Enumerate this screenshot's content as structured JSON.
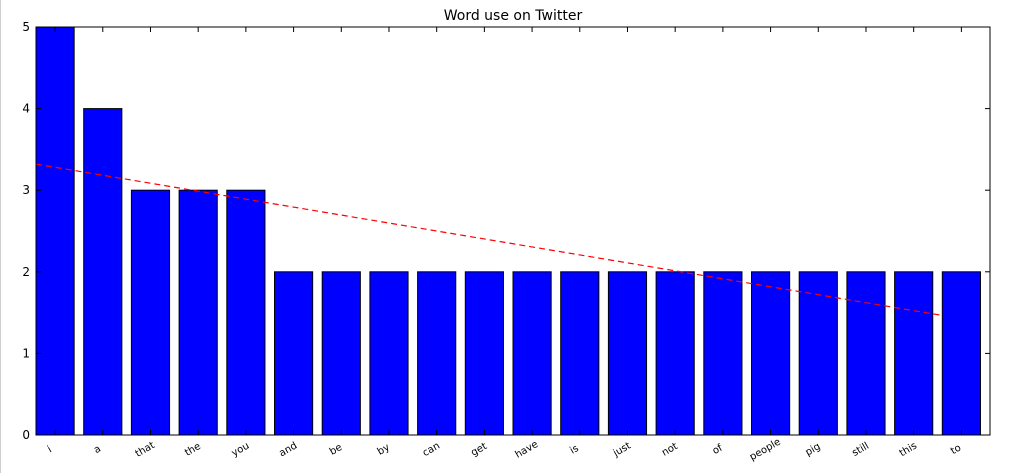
{
  "chart_data": {
    "type": "bar",
    "title": "Word use on Twitter",
    "xlabel": "",
    "ylabel": "",
    "categories": [
      "i",
      "a",
      "that",
      "the",
      "you",
      "and",
      "be",
      "by",
      "can",
      "get",
      "have",
      "is",
      "just",
      "not",
      "of",
      "people",
      "pig",
      "still",
      "this",
      "to"
    ],
    "values": [
      5,
      4,
      3,
      3,
      3,
      2,
      2,
      2,
      2,
      2,
      2,
      2,
      2,
      2,
      2,
      2,
      2,
      2,
      2,
      2
    ],
    "ylim": [
      0,
      5
    ],
    "yticks": [
      "0",
      "1",
      "2",
      "3",
      "4",
      "5"
    ],
    "bar_color": "#0000ff",
    "trend_line": {
      "color": "#ff0000",
      "style": "dashed",
      "start": 3.32,
      "end": 1.47
    },
    "grid": false,
    "legend": "none"
  }
}
